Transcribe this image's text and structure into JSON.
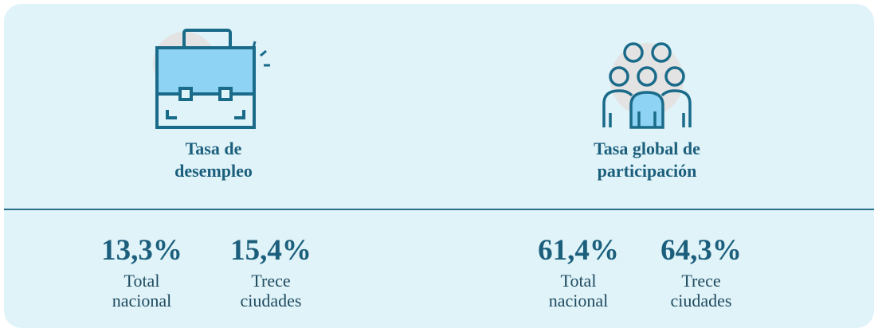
{
  "panels": [
    {
      "title": [
        "Tasa de",
        "desempleo"
      ],
      "stats": [
        {
          "value": "13,3%",
          "label": [
            "Total",
            "nacional"
          ]
        },
        {
          "value": "15,4%",
          "label": [
            "Trece",
            "ciudades"
          ]
        }
      ]
    },
    {
      "title": [
        "Tasa global de",
        "participación"
      ],
      "stats": [
        {
          "value": "61,4%",
          "label": [
            "Total",
            "nacional"
          ]
        },
        {
          "value": "64,3%",
          "label": [
            "Trece",
            "ciudades"
          ]
        }
      ]
    }
  ]
}
